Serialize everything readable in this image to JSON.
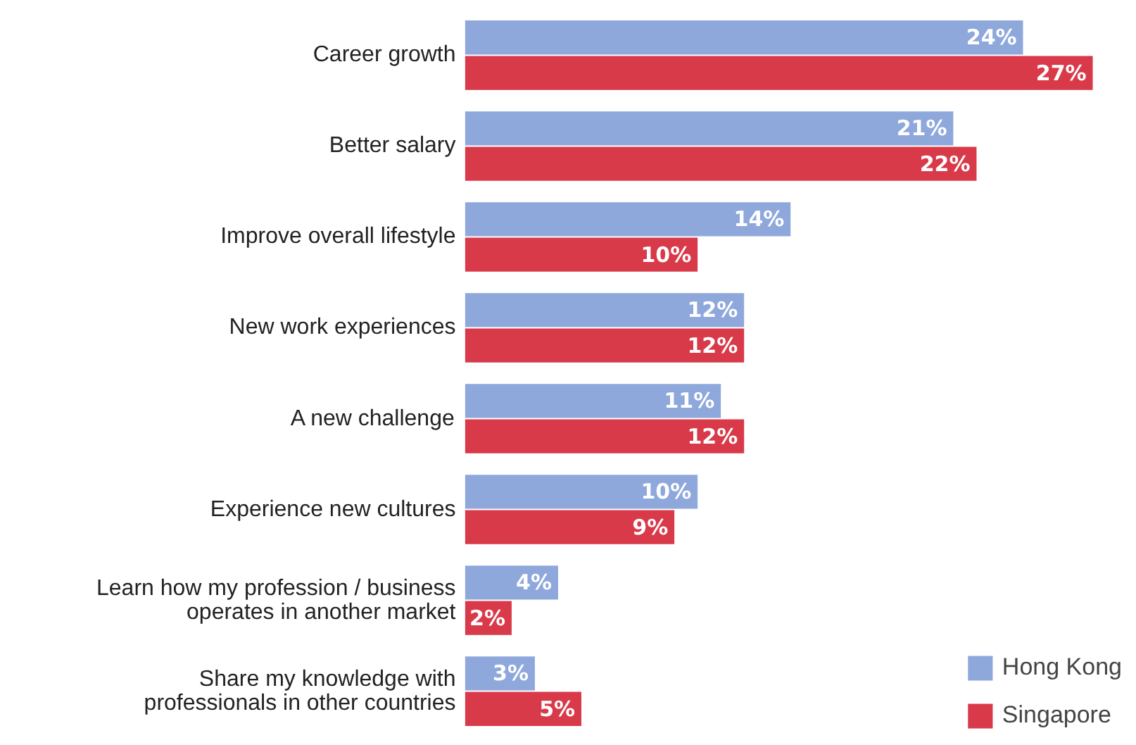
{
  "chart_data": {
    "type": "bar",
    "orientation": "horizontal",
    "categories": [
      "Career growth",
      "Better salary",
      "Improve overall lifestyle",
      "New work experiences",
      "A new challenge",
      "Experience new cultures",
      "Learn how my profession / business\noperates in another market",
      "Share my knowledge with\nprofessionals in other countries"
    ],
    "series": [
      {
        "name": "Hong Kong",
        "color": "#8fa8dc",
        "values": [
          24,
          21,
          14,
          12,
          11,
          10,
          4,
          3
        ],
        "value_labels": [
          "24%",
          "21%",
          "14%",
          "12%",
          "11%",
          "10%",
          "4%",
          "3%"
        ]
      },
      {
        "name": "Singapore",
        "color": "#d93a4a",
        "values": [
          27,
          22,
          10,
          12,
          12,
          9,
          2,
          5
        ],
        "value_labels": [
          "27%",
          "22%",
          "10%",
          "12%",
          "12%",
          "9%",
          "2%",
          "5%"
        ]
      }
    ],
    "legend": "bottom right"
  }
}
